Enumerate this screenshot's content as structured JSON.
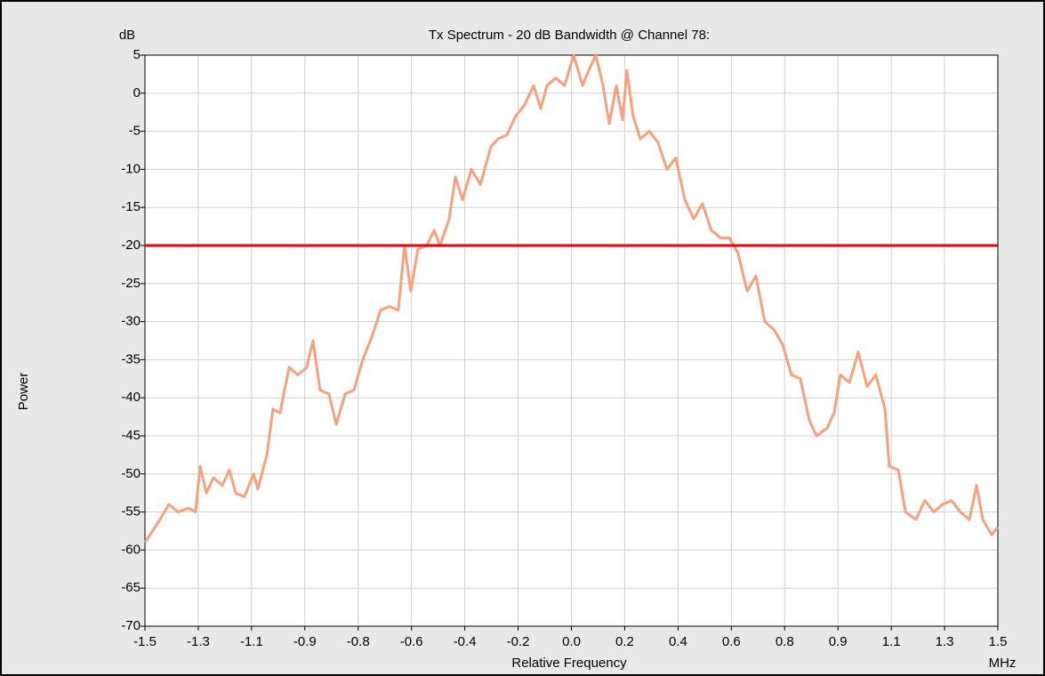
{
  "chart_data": {
    "type": "line",
    "title": "Tx Spectrum - 20 dB Bandwidth @ Channel 78:",
    "y_unit": "dB",
    "x_unit": "MHz",
    "y_label": "Power",
    "x_label": "Relative Frequency",
    "xlim": [
      -1.5,
      1.5
    ],
    "ylim": [
      -70,
      5
    ],
    "xticks": [
      -1.5,
      {
        "value": -1.3125,
        "label": "-1.3"
      },
      {
        "value": -1.125,
        "label": "-1.1"
      },
      {
        "value": -0.9375,
        "label": "-0.9"
      },
      {
        "value": -0.75,
        "label": "-0.8"
      },
      {
        "value": -0.5625,
        "label": "-0.6"
      },
      {
        "value": -0.375,
        "label": "-0.4"
      },
      {
        "value": -0.1875,
        "label": "-0.2"
      },
      {
        "value": 0,
        "label": "0.0"
      },
      {
        "value": 0.1875,
        "label": "0.2"
      },
      {
        "value": 0.375,
        "label": "0.4"
      },
      {
        "value": 0.5625,
        "label": "0.6"
      },
      {
        "value": 0.75,
        "label": "0.8"
      },
      {
        "value": 0.9375,
        "label": "0.9"
      },
      {
        "value": 1.125,
        "label": "1.1"
      },
      {
        "value": 1.3125,
        "label": "1.3"
      },
      1.5
    ],
    "yticks": [
      5,
      0,
      -5,
      -10,
      -15,
      -20,
      -25,
      -30,
      -35,
      -40,
      -45,
      -50,
      -55,
      -60,
      -65,
      -70
    ],
    "grid": true,
    "reference_line": {
      "value": -20,
      "color": "#e8000b"
    },
    "x": [
      -1.5,
      -1.447,
      -1.416,
      -1.384,
      -1.347,
      -1.322,
      -1.306,
      -1.284,
      -1.259,
      -1.228,
      -1.203,
      -1.181,
      -1.15,
      -1.118,
      -1.103,
      -1.071,
      -1.05,
      -1.025,
      -0.993,
      -0.962,
      -0.931,
      -0.909,
      -0.884,
      -0.853,
      -0.827,
      -0.796,
      -0.765,
      -0.734,
      -0.702,
      -0.671,
      -0.64,
      -0.609,
      -0.587,
      -0.565,
      -0.54,
      -0.508,
      -0.483,
      -0.462,
      -0.43,
      -0.408,
      -0.383,
      -0.352,
      -0.32,
      -0.283,
      -0.258,
      -0.227,
      -0.196,
      -0.164,
      -0.133,
      -0.108,
      -0.086,
      -0.055,
      -0.024,
      0.008,
      0.039,
      0.061,
      0.086,
      0.111,
      0.133,
      0.158,
      0.18,
      0.195,
      0.217,
      0.242,
      0.274,
      0.305,
      0.336,
      0.367,
      0.399,
      0.43,
      0.461,
      0.492,
      0.524,
      0.555,
      0.586,
      0.618,
      0.649,
      0.68,
      0.711,
      0.743,
      0.774,
      0.805,
      0.837,
      0.862,
      0.899,
      0.924,
      0.946,
      0.978,
      1.009,
      1.04,
      1.071,
      1.103,
      1.118,
      1.15,
      1.175,
      1.212,
      1.243,
      1.275,
      1.306,
      1.337,
      1.368,
      1.4,
      1.425,
      1.447,
      1.478,
      1.5
    ],
    "series": [
      {
        "color": "#f7a07c",
        "values": [
          -59,
          -56,
          -54,
          -55,
          -54.5,
          -55,
          -49,
          -52.5,
          -50.5,
          -51.5,
          -49.5,
          -52.5,
          -53,
          -50,
          -52,
          -47.5,
          -41.5,
          -42,
          -36,
          -37,
          -36,
          -32.5,
          -39,
          -39.5,
          -43.5,
          -39.5,
          -39,
          -35,
          -32,
          -28.5,
          -28,
          -28.5,
          -20,
          -26,
          -20.5,
          -20,
          -18,
          -20,
          -16.5,
          -11,
          -14,
          -10,
          -12,
          -7,
          -6,
          -5.5,
          -3,
          -1.5,
          1,
          -2,
          1,
          2,
          1,
          5,
          1,
          3,
          5,
          1,
          -4,
          1,
          -3.5,
          3,
          -3,
          -6,
          -5,
          -6.5,
          -10,
          -8.5,
          -14,
          -16.5,
          -14.5,
          -18,
          -19,
          -19,
          -21,
          -26,
          -24,
          -30,
          -31,
          -33,
          -37,
          -37.5,
          -43,
          -45,
          -44,
          -42,
          -37,
          -38,
          -34,
          -38.5,
          -37,
          -41.5,
          -49,
          -49.5,
          -55,
          -56,
          -53.5,
          -55,
          -54,
          -53.5,
          -55,
          -56,
          -51.5,
          -56,
          -58,
          -57
        ]
      }
    ]
  }
}
